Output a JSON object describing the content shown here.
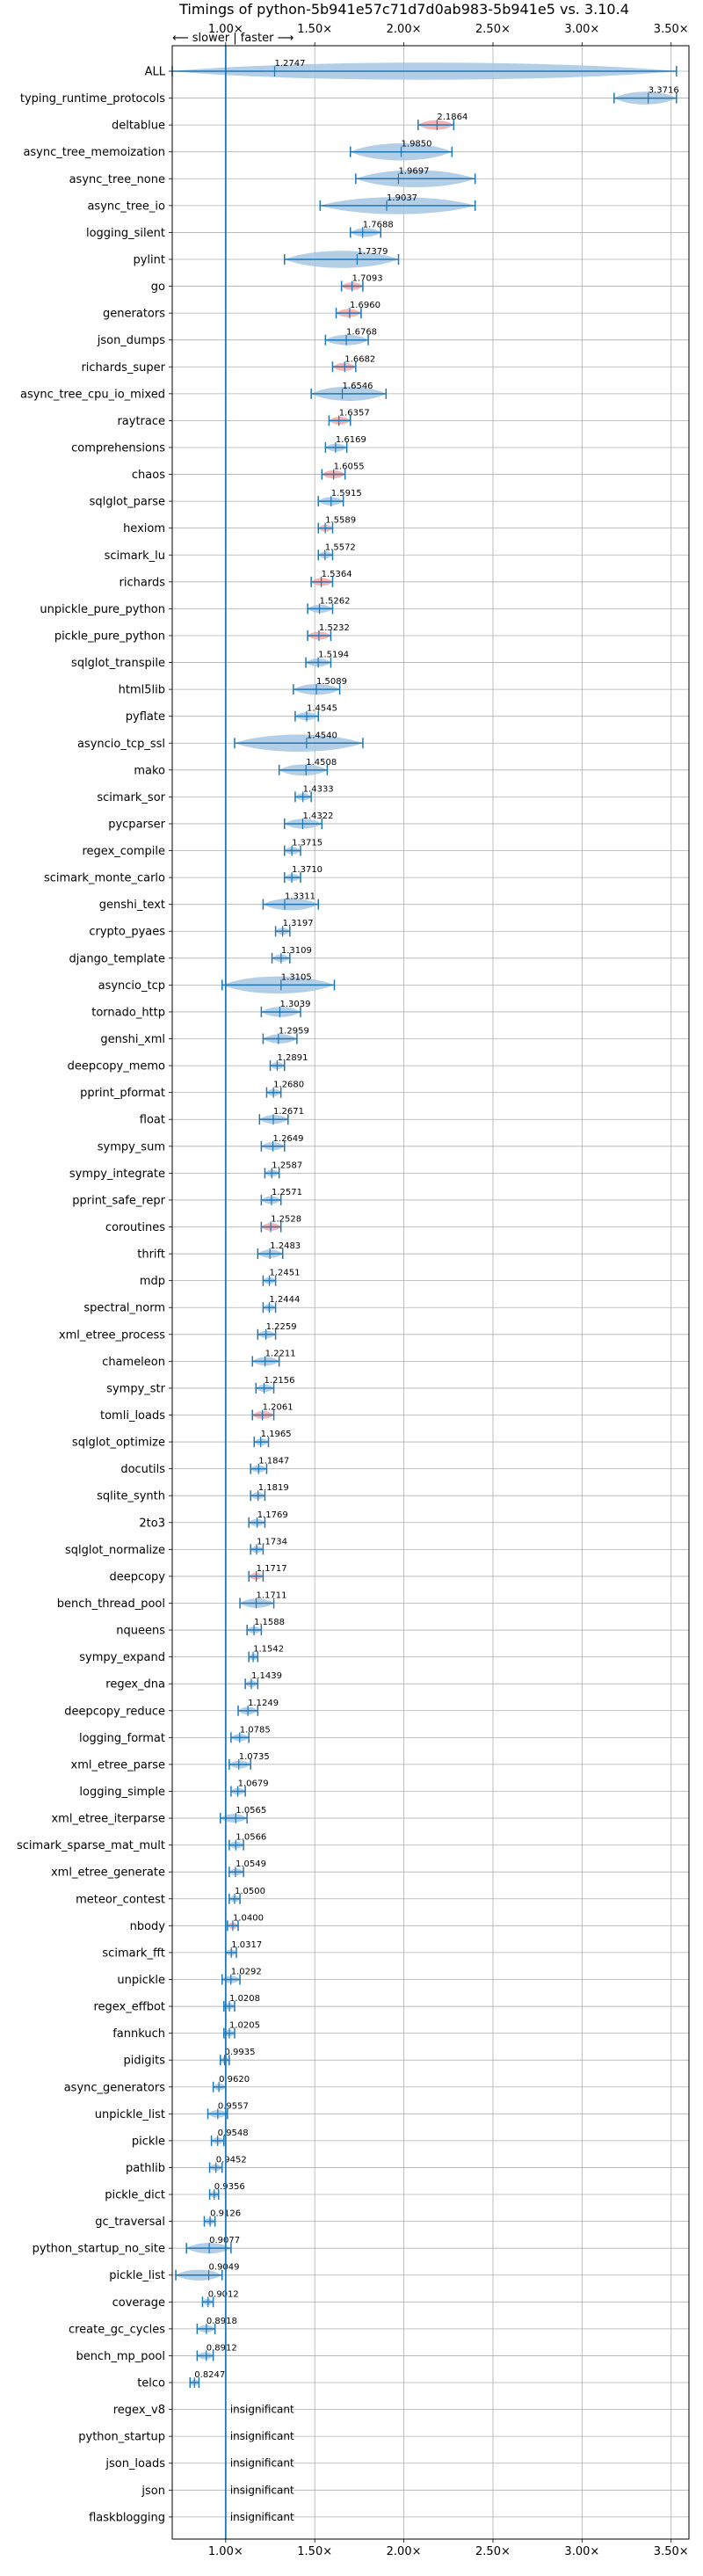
{
  "chart_data": {
    "type": "violin",
    "title": "Timings of python-5b941e57c71d7d0ab983-5b941e5 vs. 3.10.4",
    "annotation": "⟵ slower | faster ⟶",
    "xlim": [
      0.7,
      3.6
    ],
    "xticks": [
      1.0,
      1.5,
      2.0,
      2.5,
      3.0,
      3.5
    ],
    "xtick_labels": [
      "1.00×",
      "1.50×",
      "2.00×",
      "2.50×",
      "3.00×",
      "3.50×"
    ],
    "grid": true,
    "reference_line": 1.0,
    "insignificant_label": "insignificant",
    "colors": {
      "normal": "#1f77b4",
      "highlight": "#d62728",
      "violin_normal": "#a6c6e3",
      "violin_highlight": "#f4a6a6"
    },
    "benchmarks": [
      {
        "name": "ALL",
        "value": 1.2747,
        "min": 0.7,
        "max": 3.53,
        "highlight": false
      },
      {
        "name": "typing_runtime_protocols",
        "value": 3.3716,
        "min": 3.18,
        "max": 3.53,
        "highlight": false
      },
      {
        "name": "deltablue",
        "value": 2.1864,
        "min": 2.08,
        "max": 2.28,
        "highlight": true
      },
      {
        "name": "async_tree_memoization",
        "value": 1.985,
        "min": 1.7,
        "max": 2.27,
        "highlight": false
      },
      {
        "name": "async_tree_none",
        "value": 1.9697,
        "min": 1.73,
        "max": 2.4,
        "highlight": false
      },
      {
        "name": "async_tree_io",
        "value": 1.9037,
        "min": 1.53,
        "max": 2.4,
        "highlight": false
      },
      {
        "name": "logging_silent",
        "value": 1.7688,
        "min": 1.7,
        "max": 1.87,
        "highlight": false
      },
      {
        "name": "pylint",
        "value": 1.7379,
        "min": 1.33,
        "max": 1.97,
        "highlight": false
      },
      {
        "name": "go",
        "value": 1.7093,
        "min": 1.65,
        "max": 1.77,
        "highlight": true
      },
      {
        "name": "generators",
        "value": 1.696,
        "min": 1.62,
        "max": 1.76,
        "highlight": true
      },
      {
        "name": "json_dumps",
        "value": 1.6768,
        "min": 1.56,
        "max": 1.8,
        "highlight": false
      },
      {
        "name": "richards_super",
        "value": 1.6682,
        "min": 1.6,
        "max": 1.73,
        "highlight": true
      },
      {
        "name": "async_tree_cpu_io_mixed",
        "value": 1.6546,
        "min": 1.48,
        "max": 1.9,
        "highlight": false
      },
      {
        "name": "raytrace",
        "value": 1.6357,
        "min": 1.58,
        "max": 1.7,
        "highlight": true
      },
      {
        "name": "comprehensions",
        "value": 1.6169,
        "min": 1.56,
        "max": 1.68,
        "highlight": false
      },
      {
        "name": "chaos",
        "value": 1.6055,
        "min": 1.54,
        "max": 1.67,
        "highlight": true
      },
      {
        "name": "sqlglot_parse",
        "value": 1.5915,
        "min": 1.52,
        "max": 1.66,
        "highlight": false
      },
      {
        "name": "hexiom",
        "value": 1.5589,
        "min": 1.52,
        "max": 1.6,
        "highlight": true
      },
      {
        "name": "scimark_lu",
        "value": 1.5572,
        "min": 1.52,
        "max": 1.6,
        "highlight": false
      },
      {
        "name": "richards",
        "value": 1.5364,
        "min": 1.48,
        "max": 1.6,
        "highlight": true
      },
      {
        "name": "unpickle_pure_python",
        "value": 1.5262,
        "min": 1.46,
        "max": 1.6,
        "highlight": false
      },
      {
        "name": "pickle_pure_python",
        "value": 1.5232,
        "min": 1.46,
        "max": 1.59,
        "highlight": true
      },
      {
        "name": "sqlglot_transpile",
        "value": 1.5194,
        "min": 1.45,
        "max": 1.59,
        "highlight": false
      },
      {
        "name": "html5lib",
        "value": 1.5089,
        "min": 1.38,
        "max": 1.64,
        "highlight": false
      },
      {
        "name": "pyflate",
        "value": 1.4545,
        "min": 1.39,
        "max": 1.52,
        "highlight": false
      },
      {
        "name": "asyncio_tcp_ssl",
        "value": 1.454,
        "min": 1.05,
        "max": 1.77,
        "highlight": false
      },
      {
        "name": "mako",
        "value": 1.4508,
        "min": 1.3,
        "max": 1.57,
        "highlight": false
      },
      {
        "name": "scimark_sor",
        "value": 1.4333,
        "min": 1.39,
        "max": 1.48,
        "highlight": false
      },
      {
        "name": "pycparser",
        "value": 1.4322,
        "min": 1.33,
        "max": 1.54,
        "highlight": false
      },
      {
        "name": "regex_compile",
        "value": 1.3715,
        "min": 1.33,
        "max": 1.42,
        "highlight": false
      },
      {
        "name": "scimark_monte_carlo",
        "value": 1.371,
        "min": 1.33,
        "max": 1.42,
        "highlight": false
      },
      {
        "name": "genshi_text",
        "value": 1.3311,
        "min": 1.21,
        "max": 1.52,
        "highlight": false
      },
      {
        "name": "crypto_pyaes",
        "value": 1.3197,
        "min": 1.28,
        "max": 1.36,
        "highlight": false
      },
      {
        "name": "django_template",
        "value": 1.3109,
        "min": 1.26,
        "max": 1.36,
        "highlight": false
      },
      {
        "name": "asyncio_tcp",
        "value": 1.3105,
        "min": 0.98,
        "max": 1.61,
        "highlight": false
      },
      {
        "name": "tornado_http",
        "value": 1.3039,
        "min": 1.2,
        "max": 1.42,
        "highlight": false
      },
      {
        "name": "genshi_xml",
        "value": 1.2959,
        "min": 1.21,
        "max": 1.4,
        "highlight": false
      },
      {
        "name": "deepcopy_memo",
        "value": 1.2891,
        "min": 1.25,
        "max": 1.33,
        "highlight": false
      },
      {
        "name": "pprint_pformat",
        "value": 1.268,
        "min": 1.23,
        "max": 1.31,
        "highlight": false
      },
      {
        "name": "float",
        "value": 1.2671,
        "min": 1.19,
        "max": 1.35,
        "highlight": false
      },
      {
        "name": "sympy_sum",
        "value": 1.2649,
        "min": 1.2,
        "max": 1.33,
        "highlight": false
      },
      {
        "name": "sympy_integrate",
        "value": 1.2587,
        "min": 1.22,
        "max": 1.3,
        "highlight": false
      },
      {
        "name": "pprint_safe_repr",
        "value": 1.2571,
        "min": 1.2,
        "max": 1.31,
        "highlight": false
      },
      {
        "name": "coroutines",
        "value": 1.2528,
        "min": 1.2,
        "max": 1.31,
        "highlight": true
      },
      {
        "name": "thrift",
        "value": 1.2483,
        "min": 1.18,
        "max": 1.32,
        "highlight": false
      },
      {
        "name": "mdp",
        "value": 1.2451,
        "min": 1.21,
        "max": 1.28,
        "highlight": false
      },
      {
        "name": "spectral_norm",
        "value": 1.2444,
        "min": 1.21,
        "max": 1.28,
        "highlight": false
      },
      {
        "name": "xml_etree_process",
        "value": 1.2259,
        "min": 1.18,
        "max": 1.28,
        "highlight": false
      },
      {
        "name": "chameleon",
        "value": 1.2211,
        "min": 1.15,
        "max": 1.3,
        "highlight": false
      },
      {
        "name": "sympy_str",
        "value": 1.2156,
        "min": 1.17,
        "max": 1.27,
        "highlight": false
      },
      {
        "name": "tomli_loads",
        "value": 1.2061,
        "min": 1.15,
        "max": 1.27,
        "highlight": true
      },
      {
        "name": "sqlglot_optimize",
        "value": 1.1965,
        "min": 1.16,
        "max": 1.24,
        "highlight": false
      },
      {
        "name": "docutils",
        "value": 1.1847,
        "min": 1.14,
        "max": 1.23,
        "highlight": false
      },
      {
        "name": "sqlite_synth",
        "value": 1.1819,
        "min": 1.14,
        "max": 1.22,
        "highlight": false
      },
      {
        "name": "2to3",
        "value": 1.1769,
        "min": 1.13,
        "max": 1.22,
        "highlight": false
      },
      {
        "name": "sqlglot_normalize",
        "value": 1.1734,
        "min": 1.14,
        "max": 1.21,
        "highlight": false
      },
      {
        "name": "deepcopy",
        "value": 1.1717,
        "min": 1.13,
        "max": 1.21,
        "highlight": true
      },
      {
        "name": "bench_thread_pool",
        "value": 1.1711,
        "min": 1.08,
        "max": 1.27,
        "highlight": false
      },
      {
        "name": "nqueens",
        "value": 1.1588,
        "min": 1.12,
        "max": 1.2,
        "highlight": false
      },
      {
        "name": "sympy_expand",
        "value": 1.1542,
        "min": 1.13,
        "max": 1.18,
        "highlight": false
      },
      {
        "name": "regex_dna",
        "value": 1.1439,
        "min": 1.11,
        "max": 1.18,
        "highlight": false
      },
      {
        "name": "deepcopy_reduce",
        "value": 1.1249,
        "min": 1.07,
        "max": 1.18,
        "highlight": false
      },
      {
        "name": "logging_format",
        "value": 1.0785,
        "min": 1.03,
        "max": 1.13,
        "highlight": false
      },
      {
        "name": "xml_etree_parse",
        "value": 1.0735,
        "min": 1.02,
        "max": 1.14,
        "highlight": false
      },
      {
        "name": "logging_simple",
        "value": 1.0679,
        "min": 1.03,
        "max": 1.11,
        "highlight": false
      },
      {
        "name": "xml_etree_iterparse",
        "value": 1.0565,
        "min": 0.97,
        "max": 1.12,
        "highlight": false
      },
      {
        "name": "scimark_sparse_mat_mult",
        "value": 1.0566,
        "min": 1.02,
        "max": 1.1,
        "highlight": false
      },
      {
        "name": "xml_etree_generate",
        "value": 1.0549,
        "min": 1.02,
        "max": 1.1,
        "highlight": false
      },
      {
        "name": "meteor_contest",
        "value": 1.05,
        "min": 1.02,
        "max": 1.08,
        "highlight": false
      },
      {
        "name": "nbody",
        "value": 1.04,
        "min": 1.01,
        "max": 1.07,
        "highlight": true
      },
      {
        "name": "scimark_fft",
        "value": 1.0317,
        "min": 1.0,
        "max": 1.06,
        "highlight": false
      },
      {
        "name": "unpickle",
        "value": 1.0292,
        "min": 0.98,
        "max": 1.08,
        "highlight": false
      },
      {
        "name": "regex_effbot",
        "value": 1.0208,
        "min": 0.99,
        "max": 1.05,
        "highlight": false
      },
      {
        "name": "fannkuch",
        "value": 1.0205,
        "min": 0.99,
        "max": 1.05,
        "highlight": false
      },
      {
        "name": "pidigits",
        "value": 0.9935,
        "min": 0.97,
        "max": 1.02,
        "highlight": false
      },
      {
        "name": "async_generators",
        "value": 0.962,
        "min": 0.93,
        "max": 1.0,
        "highlight": false
      },
      {
        "name": "unpickle_list",
        "value": 0.9557,
        "min": 0.9,
        "max": 1.01,
        "highlight": false
      },
      {
        "name": "pickle",
        "value": 0.9548,
        "min": 0.92,
        "max": 0.99,
        "highlight": false
      },
      {
        "name": "pathlib",
        "value": 0.9452,
        "min": 0.91,
        "max": 0.98,
        "highlight": false
      },
      {
        "name": "pickle_dict",
        "value": 0.9356,
        "min": 0.91,
        "max": 0.96,
        "highlight": false
      },
      {
        "name": "gc_traversal",
        "value": 0.9126,
        "min": 0.88,
        "max": 0.94,
        "highlight": false
      },
      {
        "name": "python_startup_no_site",
        "value": 0.9077,
        "min": 0.78,
        "max": 1.03,
        "highlight": false
      },
      {
        "name": "pickle_list",
        "value": 0.9049,
        "min": 0.72,
        "max": 0.98,
        "highlight": false
      },
      {
        "name": "coverage",
        "value": 0.9012,
        "min": 0.87,
        "max": 0.93,
        "highlight": false
      },
      {
        "name": "create_gc_cycles",
        "value": 0.8918,
        "min": 0.84,
        "max": 0.94,
        "highlight": false
      },
      {
        "name": "bench_mp_pool",
        "value": 0.8912,
        "min": 0.84,
        "max": 0.93,
        "highlight": false
      },
      {
        "name": "telco",
        "value": 0.8247,
        "min": 0.8,
        "max": 0.85,
        "highlight": false
      },
      {
        "name": "regex_v8",
        "value": null,
        "insignificant": true
      },
      {
        "name": "python_startup",
        "value": null,
        "insignificant": true
      },
      {
        "name": "json_loads",
        "value": null,
        "insignificant": true
      },
      {
        "name": "json",
        "value": null,
        "insignificant": true
      },
      {
        "name": "flaskblogging",
        "value": null,
        "insignificant": true
      }
    ]
  }
}
